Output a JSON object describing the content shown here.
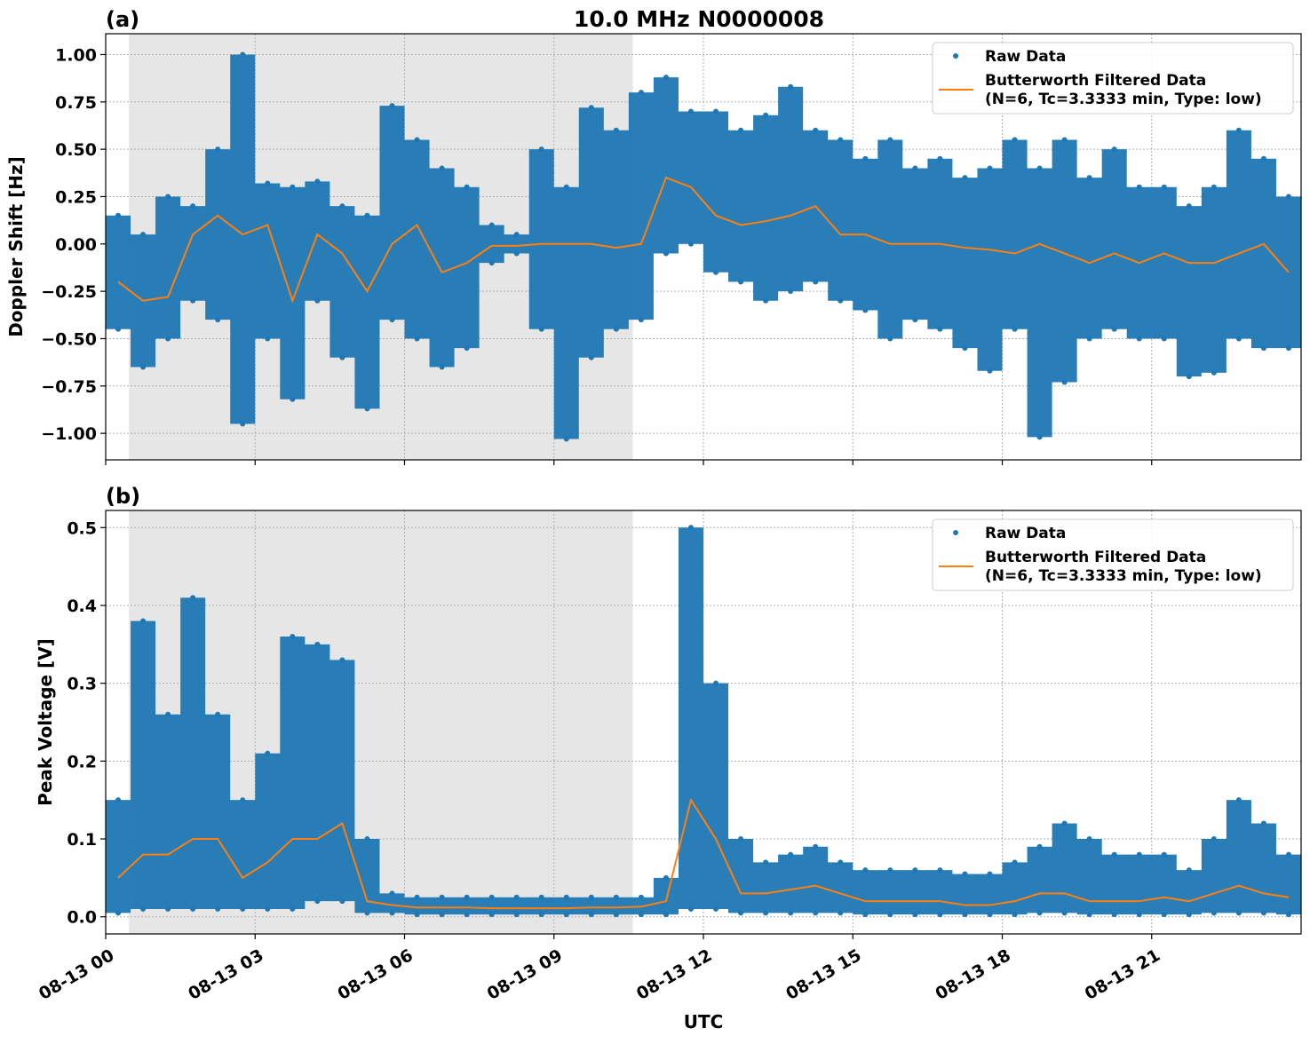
{
  "title": "10.0 MHz N0000008",
  "xlabel": "UTC",
  "x_tick_labels": [
    "08-13 00",
    "08-13 03",
    "08-13 06",
    "08-13 09",
    "08-13 12",
    "08-13 15",
    "08-13 18",
    "08-13 21"
  ],
  "night_shading": {
    "start": "00:28",
    "end": "10:35",
    "color": "#e6e6e6"
  },
  "colors": {
    "raw": "#1f77b4",
    "filtered": "#ff7f0e"
  },
  "legend": {
    "raw_label": "Raw Data",
    "filtered_label_line1": "Butterworth Filtered Data",
    "filtered_label_line2": "(N=6, Tc=3.3333 min, Type: low)",
    "placement": "upper right"
  },
  "chart_data": [
    {
      "type": "scatter",
      "panel_label": "(a)",
      "ylabel": "Doppler Shift [Hz]",
      "xlim": [
        "00:00",
        "24:00"
      ],
      "ylim": [
        -1.14,
        1.11
      ],
      "y_ticks": [
        "1.00",
        "0.75",
        "0.50",
        "0.25",
        "0.00",
        "−0.25",
        "−0.50",
        "−0.75",
        "−1.00"
      ],
      "y_tick_values": [
        1.0,
        0.75,
        0.5,
        0.25,
        0.0,
        -0.25,
        -0.5,
        -0.75,
        -1.0
      ],
      "grid": true,
      "time": [
        "00:15",
        "00:45",
        "01:15",
        "01:45",
        "02:15",
        "02:45",
        "03:15",
        "03:45",
        "04:15",
        "04:45",
        "05:15",
        "05:45",
        "06:15",
        "06:45",
        "07:15",
        "07:45",
        "08:15",
        "08:45",
        "09:15",
        "09:45",
        "10:15",
        "10:45",
        "11:15",
        "11:45",
        "12:15",
        "12:45",
        "13:15",
        "13:45",
        "14:15",
        "14:45",
        "15:15",
        "15:45",
        "16:15",
        "16:45",
        "17:15",
        "17:45",
        "18:15",
        "18:45",
        "19:15",
        "19:45",
        "20:15",
        "20:45",
        "21:15",
        "21:45",
        "22:15",
        "22:45",
        "23:15",
        "23:45"
      ],
      "filtered": [
        -0.2,
        -0.3,
        -0.28,
        0.05,
        0.15,
        0.05,
        0.1,
        -0.3,
        0.05,
        -0.05,
        -0.25,
        0.0,
        0.1,
        -0.15,
        -0.1,
        -0.01,
        -0.01,
        0.0,
        0.0,
        0.0,
        -0.02,
        0.0,
        0.35,
        0.3,
        0.15,
        0.1,
        0.12,
        0.15,
        0.2,
        0.05,
        0.05,
        0.0,
        0.0,
        0.0,
        -0.02,
        -0.03,
        -0.05,
        0.0,
        -0.05,
        -0.1,
        -0.05,
        -0.1,
        -0.05,
        -0.1,
        -0.1,
        -0.05,
        0.0,
        -0.15
      ],
      "raw_min": [
        -0.45,
        -0.65,
        -0.5,
        -0.3,
        -0.4,
        -0.95,
        -0.5,
        -0.82,
        -0.3,
        -0.6,
        -0.87,
        -0.4,
        -0.5,
        -0.65,
        -0.55,
        -0.1,
        -0.05,
        -0.45,
        -1.03,
        -0.6,
        -0.45,
        -0.4,
        -0.05,
        0.0,
        -0.15,
        -0.2,
        -0.3,
        -0.25,
        -0.2,
        -0.3,
        -0.35,
        -0.5,
        -0.4,
        -0.45,
        -0.55,
        -0.67,
        -0.45,
        -1.02,
        -0.73,
        -0.5,
        -0.45,
        -0.5,
        -0.5,
        -0.7,
        -0.68,
        -0.5,
        -0.55,
        -0.55
      ],
      "raw_max": [
        0.15,
        0.05,
        0.25,
        0.2,
        0.5,
        1.0,
        0.32,
        0.3,
        0.33,
        0.2,
        0.15,
        0.73,
        0.55,
        0.4,
        0.3,
        0.1,
        0.05,
        0.5,
        0.3,
        0.72,
        0.6,
        0.8,
        0.88,
        0.7,
        0.7,
        0.6,
        0.68,
        0.83,
        0.6,
        0.55,
        0.45,
        0.55,
        0.4,
        0.45,
        0.35,
        0.4,
        0.55,
        0.4,
        0.55,
        0.35,
        0.5,
        0.3,
        0.3,
        0.2,
        0.3,
        0.6,
        0.45,
        0.25
      ]
    },
    {
      "type": "scatter",
      "panel_label": "(b)",
      "ylabel": "Peak Voltage [V]",
      "xlim": [
        "00:00",
        "24:00"
      ],
      "ylim": [
        -0.022,
        0.522
      ],
      "y_ticks": [
        "0.5",
        "0.4",
        "0.3",
        "0.2",
        "0.1",
        "0.0"
      ],
      "y_tick_values": [
        0.5,
        0.4,
        0.3,
        0.2,
        0.1,
        0.0
      ],
      "grid": true,
      "time": [
        "00:15",
        "00:45",
        "01:15",
        "01:45",
        "02:15",
        "02:45",
        "03:15",
        "03:45",
        "04:15",
        "04:45",
        "05:15",
        "05:45",
        "06:15",
        "06:45",
        "07:15",
        "07:45",
        "08:15",
        "08:45",
        "09:15",
        "09:45",
        "10:15",
        "10:45",
        "11:15",
        "11:45",
        "12:15",
        "12:45",
        "13:15",
        "13:45",
        "14:15",
        "14:45",
        "15:15",
        "15:45",
        "16:15",
        "16:45",
        "17:15",
        "17:45",
        "18:15",
        "18:45",
        "19:15",
        "19:45",
        "20:15",
        "20:45",
        "21:15",
        "21:45",
        "22:15",
        "22:45",
        "23:15",
        "23:45"
      ],
      "filtered": [
        0.05,
        0.08,
        0.08,
        0.1,
        0.1,
        0.05,
        0.07,
        0.1,
        0.1,
        0.12,
        0.02,
        0.015,
        0.012,
        0.012,
        0.012,
        0.011,
        0.011,
        0.011,
        0.011,
        0.012,
        0.012,
        0.013,
        0.02,
        0.15,
        0.1,
        0.03,
        0.03,
        0.035,
        0.04,
        0.03,
        0.02,
        0.02,
        0.02,
        0.02,
        0.015,
        0.015,
        0.02,
        0.03,
        0.03,
        0.02,
        0.02,
        0.02,
        0.025,
        0.02,
        0.03,
        0.04,
        0.03,
        0.025
      ],
      "raw_min": [
        0.005,
        0.01,
        0.01,
        0.01,
        0.01,
        0.01,
        0.01,
        0.01,
        0.02,
        0.02,
        0.005,
        0.005,
        0.003,
        0.003,
        0.003,
        0.003,
        0.003,
        0.003,
        0.003,
        0.003,
        0.003,
        0.003,
        0.003,
        0.01,
        0.01,
        0.005,
        0.005,
        0.005,
        0.005,
        0.005,
        0.003,
        0.003,
        0.003,
        0.003,
        0.003,
        0.003,
        0.003,
        0.005,
        0.005,
        0.003,
        0.003,
        0.003,
        0.003,
        0.003,
        0.005,
        0.005,
        0.005,
        0.003
      ],
      "raw_max": [
        0.15,
        0.38,
        0.26,
        0.41,
        0.26,
        0.15,
        0.21,
        0.36,
        0.35,
        0.33,
        0.1,
        0.03,
        0.025,
        0.025,
        0.025,
        0.025,
        0.025,
        0.025,
        0.025,
        0.025,
        0.025,
        0.025,
        0.05,
        0.5,
        0.3,
        0.1,
        0.07,
        0.08,
        0.09,
        0.07,
        0.06,
        0.06,
        0.06,
        0.06,
        0.055,
        0.055,
        0.07,
        0.09,
        0.12,
        0.1,
        0.08,
        0.08,
        0.08,
        0.06,
        0.1,
        0.15,
        0.12,
        0.08
      ]
    }
  ]
}
